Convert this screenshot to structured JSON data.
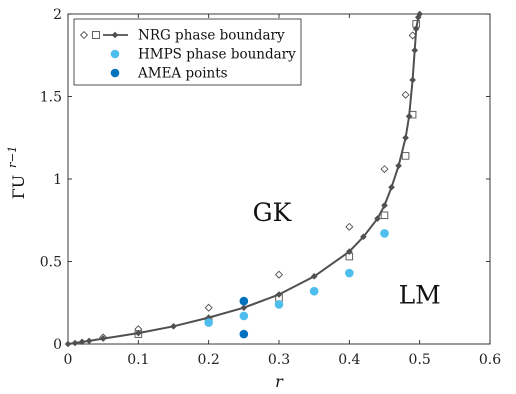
{
  "chart_data": {
    "type": "scatter",
    "x_ticks": [
      "0",
      "0.1",
      "0.2",
      "0.3",
      "0.4",
      "0.5",
      "0.6"
    ],
    "y_ticks": [
      "0",
      "0.5",
      "1",
      "1.5",
      "2"
    ],
    "xlabel": "r",
    "ylabel": "ΓU",
    "ylabel_sup": "r−1",
    "xlim": [
      0,
      0.6
    ],
    "ylim": [
      0,
      2
    ],
    "grid": false,
    "legend_position": "top-left",
    "colors": {
      "nrg": "#505050",
      "hmps": "#4DBEEE",
      "amea": "#0072BD"
    },
    "legend": [
      {
        "label": "NRG phase boundary",
        "marker": "nrg"
      },
      {
        "label": "HMPS phase boundary",
        "marker": "hmps"
      },
      {
        "label": "AMEA points",
        "marker": "amea"
      }
    ],
    "annotations": [
      {
        "text": "GK",
        "x": 0.29,
        "y": 0.8
      },
      {
        "text": "LM",
        "x": 0.5,
        "y": 0.3
      }
    ],
    "series": [
      {
        "name": "NRG phase boundary",
        "style": "line-filled-diamond",
        "points": [
          [
            0,
            0
          ],
          [
            0.01,
            0.006
          ],
          [
            0.02,
            0.013
          ],
          [
            0.03,
            0.019
          ],
          [
            0.05,
            0.033
          ],
          [
            0.1,
            0.066
          ],
          [
            0.15,
            0.107
          ],
          [
            0.2,
            0.16
          ],
          [
            0.25,
            0.22
          ],
          [
            0.3,
            0.3
          ],
          [
            0.35,
            0.41
          ],
          [
            0.4,
            0.56
          ],
          [
            0.42,
            0.65
          ],
          [
            0.44,
            0.76
          ],
          [
            0.45,
            0.84
          ],
          [
            0.46,
            0.95
          ],
          [
            0.47,
            1.08
          ],
          [
            0.48,
            1.25
          ],
          [
            0.485,
            1.38
          ],
          [
            0.49,
            1.6
          ],
          [
            0.493,
            1.78
          ],
          [
            0.495,
            1.91
          ],
          [
            0.498,
            1.98
          ],
          [
            0.5,
            2.0
          ]
        ]
      },
      {
        "name": "NRG open diamonds",
        "style": "open-diamond",
        "points": [
          [
            0.05,
            0.04
          ],
          [
            0.1,
            0.09
          ],
          [
            0.2,
            0.22
          ],
          [
            0.3,
            0.42
          ],
          [
            0.4,
            0.71
          ],
          [
            0.45,
            1.06
          ],
          [
            0.48,
            1.51
          ],
          [
            0.49,
            1.87
          ]
        ]
      },
      {
        "name": "NRG open squares",
        "style": "open-square",
        "points": [
          [
            0.1,
            0.06
          ],
          [
            0.2,
            0.14
          ],
          [
            0.3,
            0.28
          ],
          [
            0.4,
            0.53
          ],
          [
            0.45,
            0.78
          ],
          [
            0.48,
            1.14
          ],
          [
            0.49,
            1.39
          ],
          [
            0.495,
            1.94
          ]
        ]
      },
      {
        "name": "HMPS phase boundary",
        "style": "dot-light",
        "points": [
          [
            0.2,
            0.13
          ],
          [
            0.25,
            0.17
          ],
          [
            0.3,
            0.24
          ],
          [
            0.35,
            0.32
          ],
          [
            0.4,
            0.43
          ],
          [
            0.45,
            0.67
          ]
        ]
      },
      {
        "name": "AMEA points",
        "style": "dot-dark",
        "points": [
          [
            0.25,
            0.26
          ],
          [
            0.25,
            0.06
          ]
        ]
      }
    ]
  }
}
